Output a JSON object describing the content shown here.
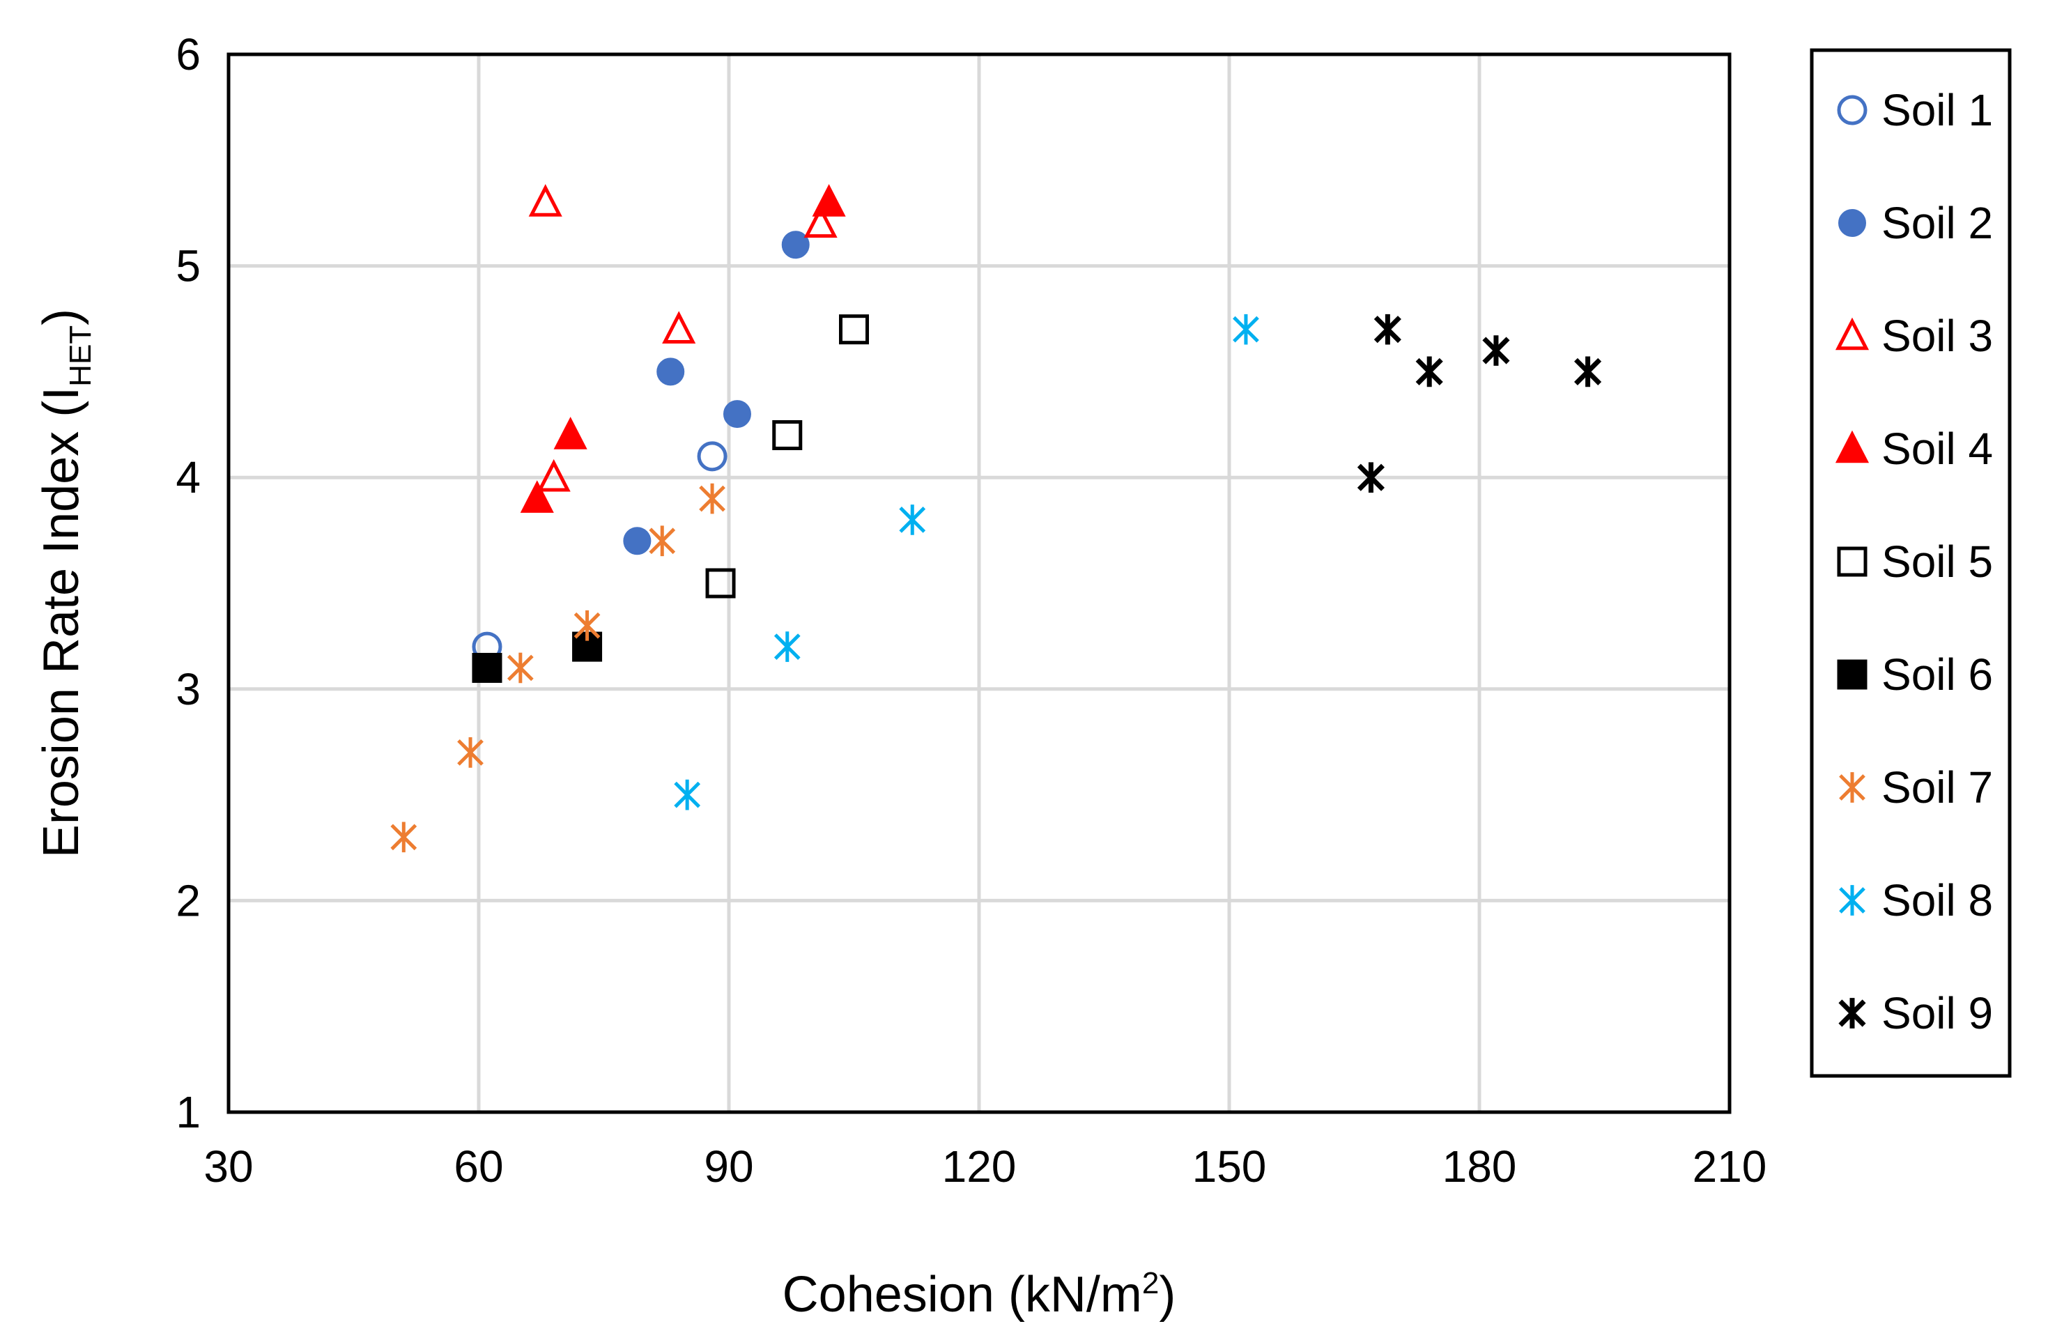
{
  "chart_data": {
    "type": "scatter",
    "title": "",
    "xlabel": "Cohesion (kN/m",
    "xlabel_sup": "2",
    "xlabel_suffix": ")",
    "ylabel": "Erosion Rate Index (I",
    "ylabel_sub": "HET",
    "ylabel_suffix": ")",
    "xlim": [
      30,
      210
    ],
    "ylim": [
      1,
      6
    ],
    "xticks": [
      30,
      60,
      90,
      120,
      150,
      180,
      210
    ],
    "yticks": [
      1,
      2,
      3,
      4,
      5,
      6
    ],
    "grid": true,
    "legend_position": "right",
    "series": [
      {
        "name": "Soil 1",
        "marker": "circle-open",
        "color": "#4472C4",
        "x": [
          61,
          88
        ],
        "y": [
          3.2,
          4.1
        ]
      },
      {
        "name": "Soil 2",
        "marker": "circle-filled",
        "color": "#4472C4",
        "x": [
          98,
          83,
          91,
          79
        ],
        "y": [
          5.1,
          4.5,
          4.3,
          3.7
        ]
      },
      {
        "name": "Soil 3",
        "marker": "triangle-open",
        "color": "#FF0000",
        "x": [
          68,
          101,
          84,
          69
        ],
        "y": [
          5.3,
          5.2,
          4.7,
          4.0
        ]
      },
      {
        "name": "Soil 4",
        "marker": "triangle-filled",
        "color": "#FF0000",
        "x": [
          102,
          71,
          67
        ],
        "y": [
          5.3,
          4.2,
          3.9
        ]
      },
      {
        "name": "Soil 5",
        "marker": "square-open",
        "color": "#000000",
        "x": [
          105,
          97,
          89
        ],
        "y": [
          4.7,
          4.2,
          3.5
        ]
      },
      {
        "name": "Soil 6",
        "marker": "square-filled",
        "color": "#000000",
        "x": [
          73,
          61
        ],
        "y": [
          3.2,
          3.1
        ]
      },
      {
        "name": "Soil 7",
        "marker": "asterisk",
        "color": "#ED7D31",
        "x": [
          88,
          82,
          73,
          65,
          59,
          51
        ],
        "y": [
          3.9,
          3.7,
          3.3,
          3.1,
          2.7,
          2.3
        ]
      },
      {
        "name": "Soil 8",
        "marker": "asterisk",
        "color": "#00B0F0",
        "x": [
          152,
          112,
          97,
          85
        ],
        "y": [
          4.7,
          3.8,
          3.2,
          2.5
        ]
      },
      {
        "name": "Soil 9",
        "marker": "asterisk-bold",
        "color": "#000000",
        "x": [
          169,
          174,
          182,
          193,
          167
        ],
        "y": [
          4.7,
          4.5,
          4.6,
          4.5,
          4.0
        ]
      }
    ]
  }
}
